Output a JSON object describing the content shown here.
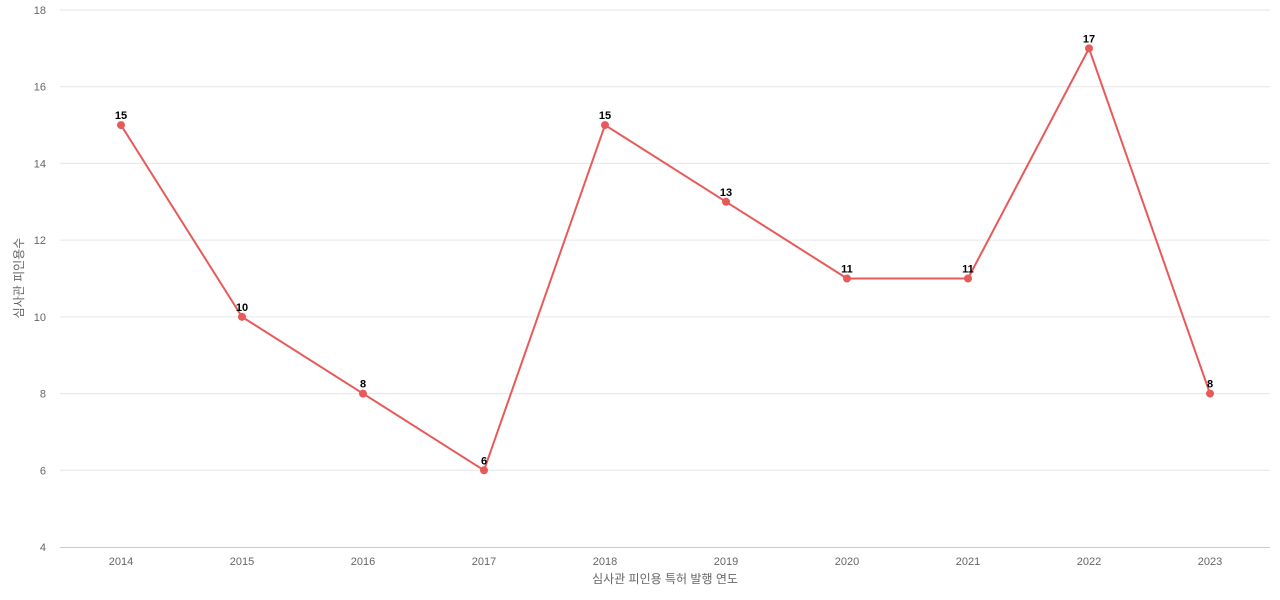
{
  "chart_data": {
    "type": "line",
    "title": "",
    "xlabel": "심사관 피인용 특허 발행 연도",
    "ylabel": "심사관 피인용수",
    "categories": [
      "2014",
      "2015",
      "2016",
      "2017",
      "2018",
      "2019",
      "2020",
      "2021",
      "2022",
      "2023"
    ],
    "series": [
      {
        "values": [
          15,
          10,
          8,
          6,
          15,
          13,
          11,
          11,
          17,
          8
        ],
        "color": "#e85a5a"
      }
    ],
    "ylim": [
      4,
      18
    ],
    "yticks": [
      "4",
      "6",
      "8",
      "10",
      "12",
      "14",
      "16",
      "18"
    ],
    "grid": true,
    "data_labels": true
  }
}
